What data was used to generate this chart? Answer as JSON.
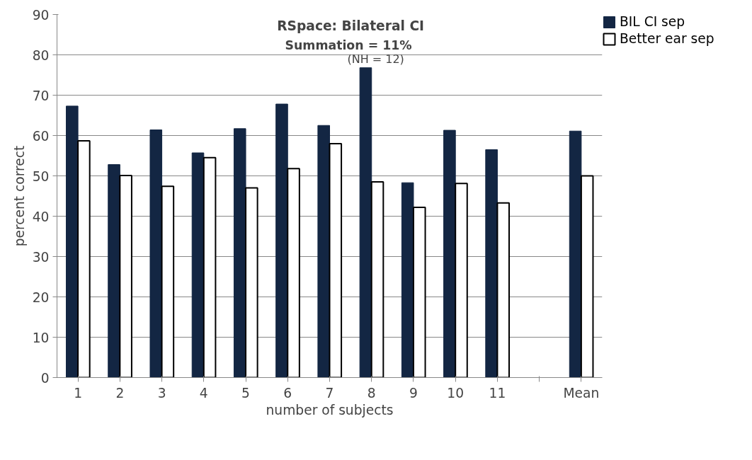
{
  "chart_data": {
    "type": "bar",
    "title": "RSpace: Bilateral CI",
    "subtitle": "Summation =  11%",
    "annotations": [
      "(NH = 12)"
    ],
    "xlabel": "number of subjects",
    "ylabel": "percent correct",
    "categories": [
      "1",
      "2",
      "3",
      "4",
      "5",
      "6",
      "7",
      "8",
      "9",
      "10",
      "11",
      null,
      "Mean"
    ],
    "series": [
      {
        "name": "BIL CI sep",
        "color": "#132643",
        "values": [
          67.3,
          52.8,
          61.4,
          55.7,
          61.7,
          67.8,
          62.5,
          76.8,
          48.3,
          61.3,
          56.5,
          null,
          61.1
        ]
      },
      {
        "name": "Better ear sep",
        "color": "#ffffff",
        "values": [
          58.7,
          50.1,
          47.4,
          54.5,
          47.0,
          51.8,
          58.0,
          48.5,
          42.2,
          48.1,
          43.3,
          null,
          50.0
        ]
      }
    ],
    "ylim": [
      0,
      90
    ],
    "yticks": [
      0,
      10,
      20,
      30,
      40,
      50,
      60,
      70,
      80,
      90
    ],
    "grid": "y",
    "legend": "right"
  }
}
